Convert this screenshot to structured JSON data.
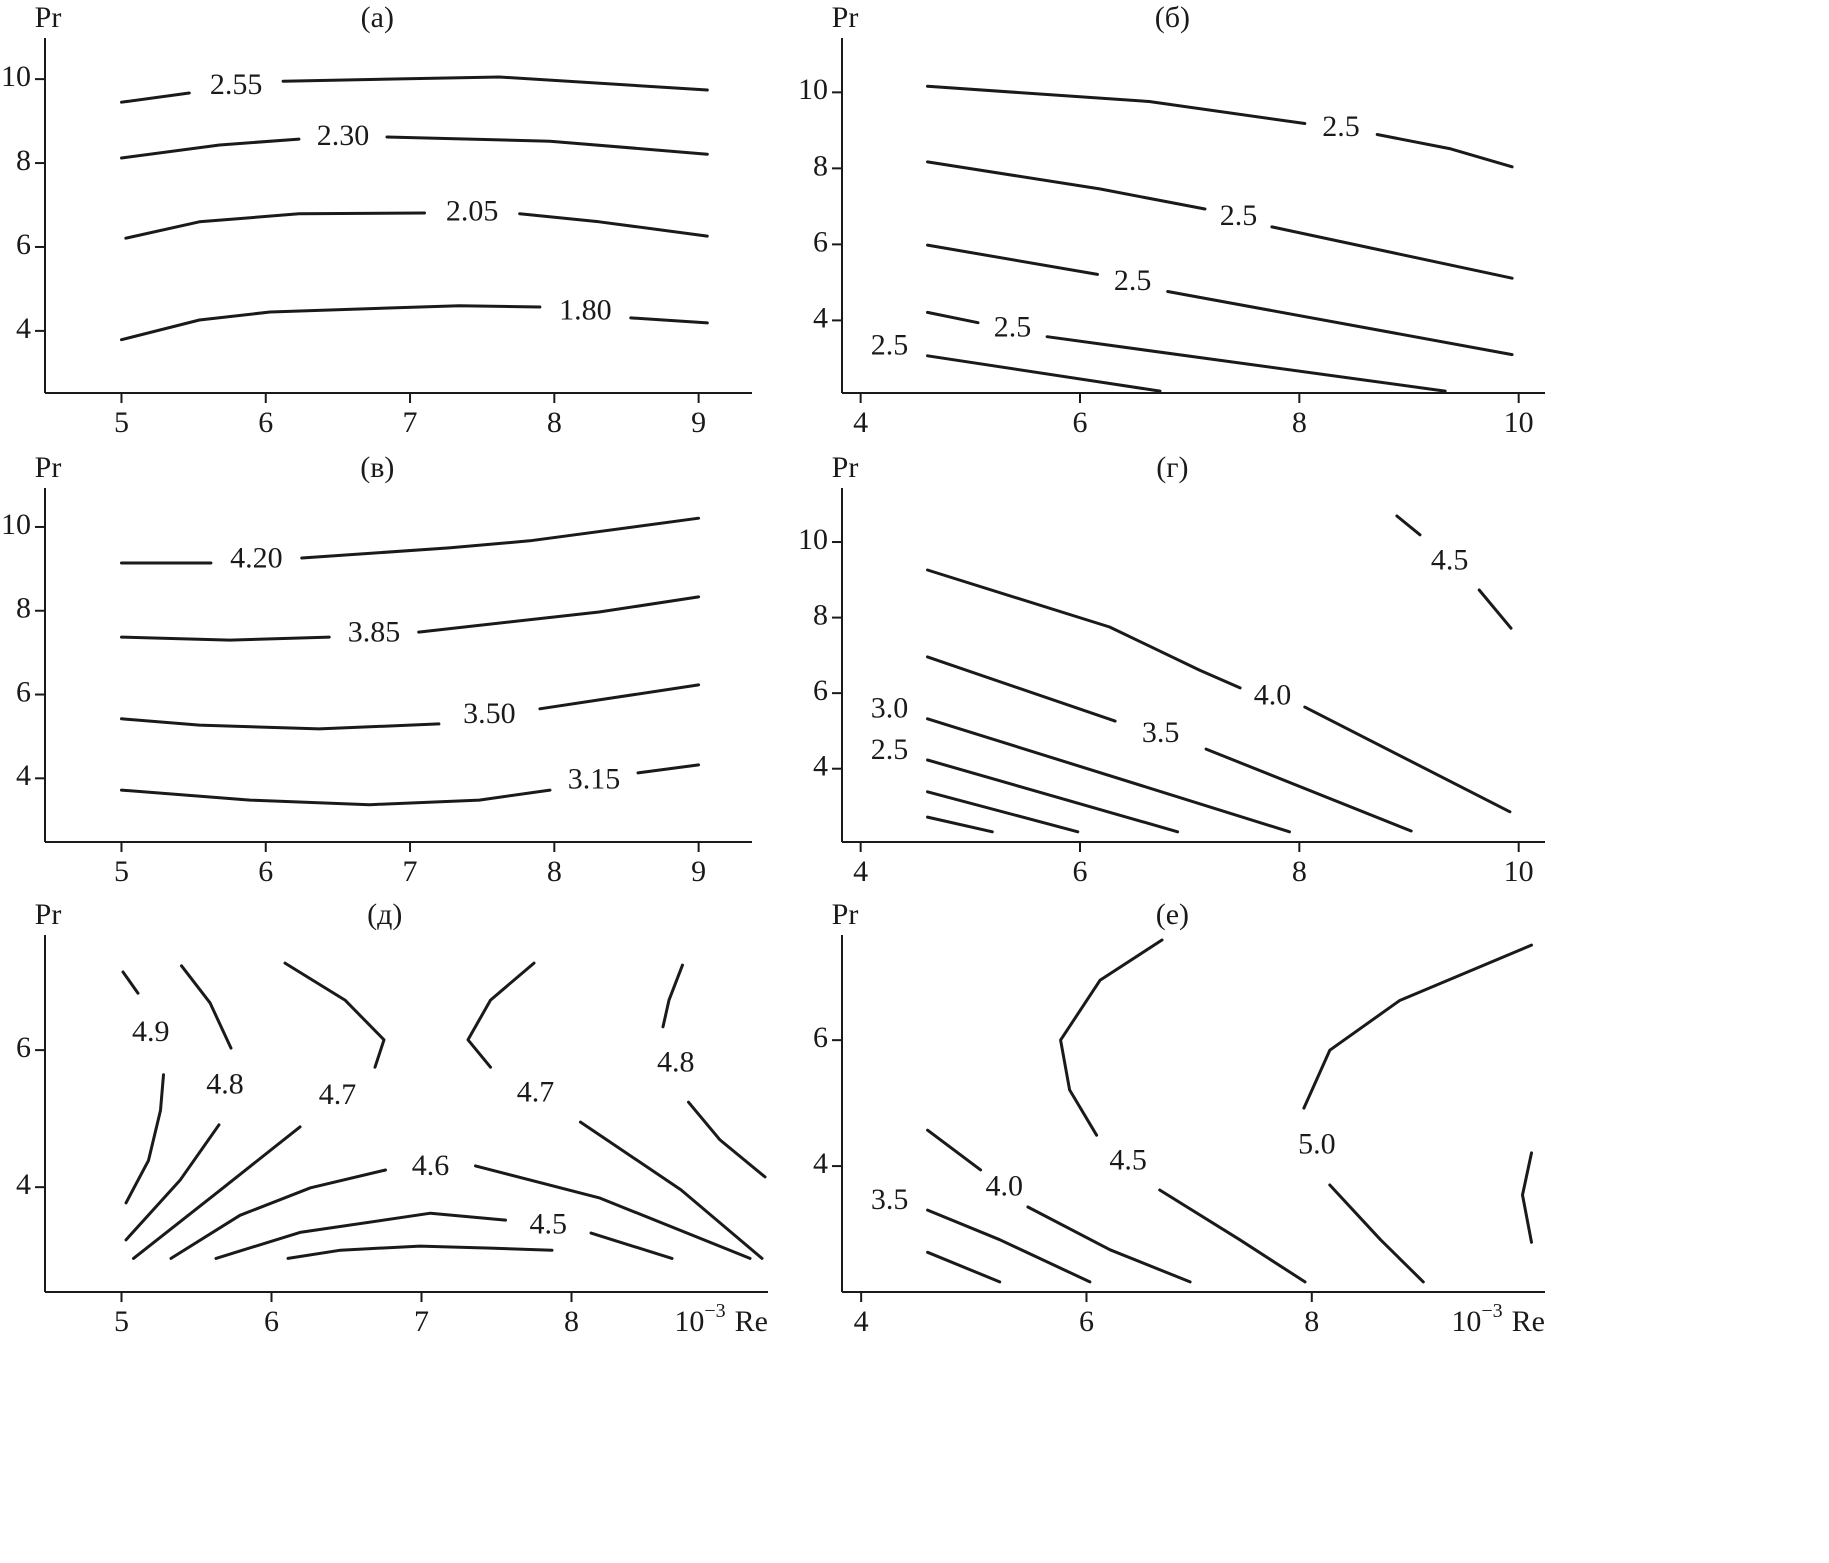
{
  "chart_data": [
    {
      "type": "contour",
      "title": "(а)",
      "ylabel": "Pr",
      "xlim": [
        4.47,
        9.37
      ],
      "ylim": [
        2.52,
        10.98
      ],
      "xticks": [
        5,
        6,
        7,
        8,
        9
      ],
      "yticks": [
        4,
        6,
        8,
        10
      ],
      "contours": [
        {
          "level": 2.55,
          "x": [
            5.0,
            5.47,
            null,
            6.12,
            7.62,
            9.06
          ],
          "y": [
            9.45,
            9.67,
            null,
            9.95,
            10.05,
            9.74
          ]
        },
        {
          "level": {
            "value": 2.3,
            "label": "2.30"
          },
          "x": [
            5.0,
            5.68,
            6.23,
            null,
            6.84,
            7.97,
            9.06
          ],
          "y": [
            8.12,
            8.43,
            8.57,
            null,
            8.62,
            8.52,
            8.21
          ]
        },
        {
          "level": 2.05,
          "x": [
            5.03,
            5.54,
            6.23,
            7.1,
            null,
            7.76,
            8.31,
            9.06
          ],
          "y": [
            6.21,
            6.6,
            6.79,
            6.81,
            null,
            6.79,
            6.6,
            6.26
          ]
        },
        {
          "level": {
            "value": 1.8,
            "label": "1.80"
          },
          "x": [
            5.0,
            5.54,
            6.03,
            7.34,
            7.9,
            null,
            8.53,
            9.06
          ],
          "y": [
            3.79,
            4.26,
            4.45,
            4.6,
            4.57,
            null,
            4.31,
            4.19
          ]
        }
      ]
    },
    {
      "type": "contour",
      "title": "(б)",
      "ylabel": "Pr",
      "xlim": [
        3.83,
        10.24
      ],
      "ylim": [
        2.09,
        11.43
      ],
      "xticks": [
        4,
        6,
        8,
        10
      ],
      "yticks": [
        4,
        6,
        8,
        10
      ],
      "contours": [
        {
          "level": 2.5,
          "x": [
            4.61,
            6.63,
            8.05,
            null,
            8.71,
            9.37,
            9.94
          ],
          "y": [
            10.16,
            9.76,
            9.18,
            null,
            8.89,
            8.52,
            8.04
          ]
        },
        {
          "level": 2.5,
          "x": [
            4.61,
            6.18,
            7.14,
            null,
            7.75,
            9.94
          ],
          "y": [
            8.17,
            7.46,
            6.93,
            null,
            6.46,
            5.11
          ]
        },
        {
          "level": 2.5,
          "x": [
            4.61,
            6.16,
            null,
            6.8,
            9.94
          ],
          "y": [
            5.98,
            5.21,
            null,
            4.76,
            3.1
          ]
        },
        {
          "level": 2.5,
          "x": [
            4.61,
            5.07,
            null,
            5.7,
            9.33
          ],
          "y": [
            4.21,
            3.94,
            null,
            3.57,
            2.14
          ]
        },
        {
          "level": 2.5,
          "x": [
            null,
            4.61,
            6.73
          ],
          "y": [
            null,
            3.07,
            2.14
          ]
        }
      ]
    },
    {
      "type": "contour",
      "title": "(в)",
      "ylabel": "Pr",
      "xlim": [
        4.47,
        9.37
      ],
      "ylim": [
        2.48,
        10.93
      ],
      "xticks": [
        5,
        6,
        7,
        8,
        9
      ],
      "yticks": [
        4,
        6,
        8,
        10
      ],
      "contours": [
        {
          "level": {
            "value": 4.2,
            "label": "4.20"
          },
          "x": [
            5.0,
            5.62,
            null,
            6.25,
            7.27,
            7.83,
            9.0
          ],
          "y": [
            9.14,
            9.14,
            null,
            9.26,
            9.5,
            9.67,
            10.21
          ]
        },
        {
          "level": 3.85,
          "x": [
            5.0,
            5.75,
            6.44,
            null,
            7.06,
            8.31,
            9.0
          ],
          "y": [
            7.37,
            7.3,
            7.37,
            null,
            7.49,
            7.97,
            8.33
          ]
        },
        {
          "level": {
            "value": 3.5,
            "label": "3.50"
          },
          "x": [
            5.0,
            5.54,
            6.37,
            7.2,
            null,
            7.9,
            9.0
          ],
          "y": [
            5.42,
            5.27,
            5.18,
            5.3,
            null,
            5.66,
            6.23
          ]
        },
        {
          "level": 3.15,
          "x": [
            5.0,
            5.89,
            6.72,
            7.48,
            7.97,
            null,
            8.58,
            9.0
          ],
          "y": [
            3.72,
            3.48,
            3.37,
            3.48,
            3.72,
            null,
            4.13,
            4.32
          ]
        }
      ]
    },
    {
      "type": "contour",
      "title": "(г)",
      "ylabel": "Pr",
      "xlim": [
        3.83,
        10.24
      ],
      "ylim": [
        2.06,
        11.43
      ],
      "xticks": [
        4,
        6,
        8,
        10
      ],
      "yticks": [
        4,
        6,
        8,
        10
      ],
      "contours": [
        {
          "level": 4.5,
          "x": [
            8.89,
            9.1,
            null,
            9.64,
            9.93
          ],
          "y": [
            10.69,
            10.19,
            null,
            8.73,
            7.72
          ]
        },
        {
          "level": {
            "value": 4,
            "label": "4.0"
          },
          "x": [
            4.61,
            6.27,
            7.09,
            7.46,
            null,
            8.05,
            9.92
          ],
          "y": [
            9.26,
            7.75,
            6.61,
            6.14,
            null,
            5.63,
            2.86
          ]
        },
        {
          "level": 3.5,
          "x": [
            4.61,
            6.32,
            null,
            7.15,
            9.02
          ],
          "y": [
            6.96,
            5.26,
            null,
            4.52,
            2.35
          ]
        },
        {
          "level": {
            "value": 3,
            "label": "3.0"
          },
          "x": [
            null,
            4.61,
            7.91
          ],
          "y": [
            null,
            5.32,
            2.33
          ]
        },
        {
          "level": 2.5,
          "x": [
            null,
            4.61,
            6.89
          ],
          "y": [
            null,
            4.23,
            2.33
          ]
        },
        {
          "x": [
            4.61,
            5.98
          ],
          "y": [
            3.39,
            2.33
          ]
        },
        {
          "x": [
            4.61,
            5.2
          ],
          "y": [
            2.72,
            2.33
          ]
        }
      ]
    },
    {
      "type": "contour",
      "title": "(д)",
      "ylabel": "Pr",
      "xlabel": {
        "base": "10",
        "exponent": "−3",
        "unit": "Re"
      },
      "xlim": [
        4.49,
        9.31
      ],
      "ylim": [
        2.47,
        7.68
      ],
      "xticks": [
        5,
        6,
        7,
        8
      ],
      "yticks": [
        4,
        6
      ],
      "contours": [
        {
          "level": 4.9,
          "x": [
            5.01,
            5.11,
            null,
            5.28,
            5.26,
            5.18,
            5.03
          ],
          "y": [
            7.14,
            6.83,
            null,
            5.64,
            5.12,
            4.39,
            3.77
          ]
        },
        {
          "level": 4.8,
          "x": [
            5.4,
            5.59,
            5.73,
            null,
            5.65,
            5.39,
            5.03
          ],
          "y": [
            7.23,
            6.69,
            6.03,
            null,
            4.91,
            4.1,
            3.23
          ]
        },
        {
          "level": 4.7,
          "x": [
            6.09,
            6.49,
            6.75,
            6.69,
            null,
            6.19,
            5.66,
            5.08
          ],
          "y": [
            7.27,
            6.73,
            6.15,
            5.75,
            null,
            4.88,
            3.96,
            2.96
          ]
        },
        {
          "level": 4.7,
          "x": [
            7.75,
            7.46,
            7.31,
            7.46,
            null,
            8.06,
            8.73,
            9.27
          ],
          "y": [
            7.27,
            6.73,
            6.15,
            5.75,
            null,
            4.95,
            3.96,
            2.96
          ]
        },
        {
          "level": 4.8,
          "x": [
            8.74,
            8.65,
            8.61,
            null,
            8.78,
            8.99,
            9.29
          ],
          "y": [
            7.24,
            6.73,
            6.34,
            null,
            5.24,
            4.69,
            4.15
          ]
        },
        {
          "level": 4.6,
          "x": [
            5.33,
            5.79,
            6.26,
            6.76,
            null,
            7.36,
            8.19,
            9.19
          ],
          "y": [
            2.96,
            3.59,
            3.99,
            4.25,
            null,
            4.31,
            3.84,
            2.96
          ]
        },
        {
          "level": 4.5,
          "x": [
            5.63,
            6.19,
            7.06,
            7.56,
            null,
            8.13,
            8.67
          ],
          "y": [
            2.96,
            3.34,
            3.62,
            3.52,
            null,
            3.33,
            2.96
          ]
        },
        {
          "x": [
            6.11,
            6.46,
            6.99,
            7.46,
            7.87
          ],
          "y": [
            2.96,
            3.08,
            3.14,
            3.11,
            3.08
          ]
        }
      ]
    },
    {
      "type": "contour",
      "title": "(е)",
      "ylabel": "Pr",
      "xlabel": {
        "base": "10",
        "exponent": "−3",
        "unit": "Re"
      },
      "xlim": [
        3.83,
        10.07
      ],
      "ylim": [
        2.0,
        7.67
      ],
      "xticks": [
        4,
        6,
        8
      ],
      "yticks": [
        4,
        6
      ],
      "contours": [
        {
          "level": 4.5,
          "x": [
            6.67,
            6.12,
            5.77,
            5.85,
            6.09,
            null,
            6.65,
            7.36,
            7.94
          ],
          "y": [
            7.59,
            6.95,
            6.0,
            5.21,
            4.49,
            null,
            3.62,
            2.83,
            2.16
          ]
        },
        {
          "level": {
            "value": 5,
            "label": "5.0"
          },
          "x": [
            9.95,
            8.78,
            8.16,
            7.93,
            null,
            8.16,
            8.61,
            8.99
          ],
          "y": [
            7.51,
            6.63,
            5.84,
            4.92,
            null,
            3.7,
            2.83,
            2.16
          ]
        },
        {
          "x": [
            9.95,
            9.87,
            9.95
          ],
          "y": [
            4.21,
            3.54,
            2.79
          ]
        },
        {
          "level": {
            "value": 4,
            "label": "4.0"
          },
          "x": [
            4.59,
            5.06,
            null,
            5.48,
            6.21,
            6.92
          ],
          "y": [
            4.57,
            3.94,
            null,
            3.35,
            2.67,
            2.16
          ]
        },
        {
          "level": 3.5,
          "x": [
            null,
            4.59,
            5.23,
            6.03
          ],
          "y": [
            null,
            3.3,
            2.83,
            2.16
          ]
        },
        {
          "x": [
            4.59,
            5.23
          ],
          "y": [
            2.63,
            2.16
          ]
        }
      ]
    }
  ]
}
